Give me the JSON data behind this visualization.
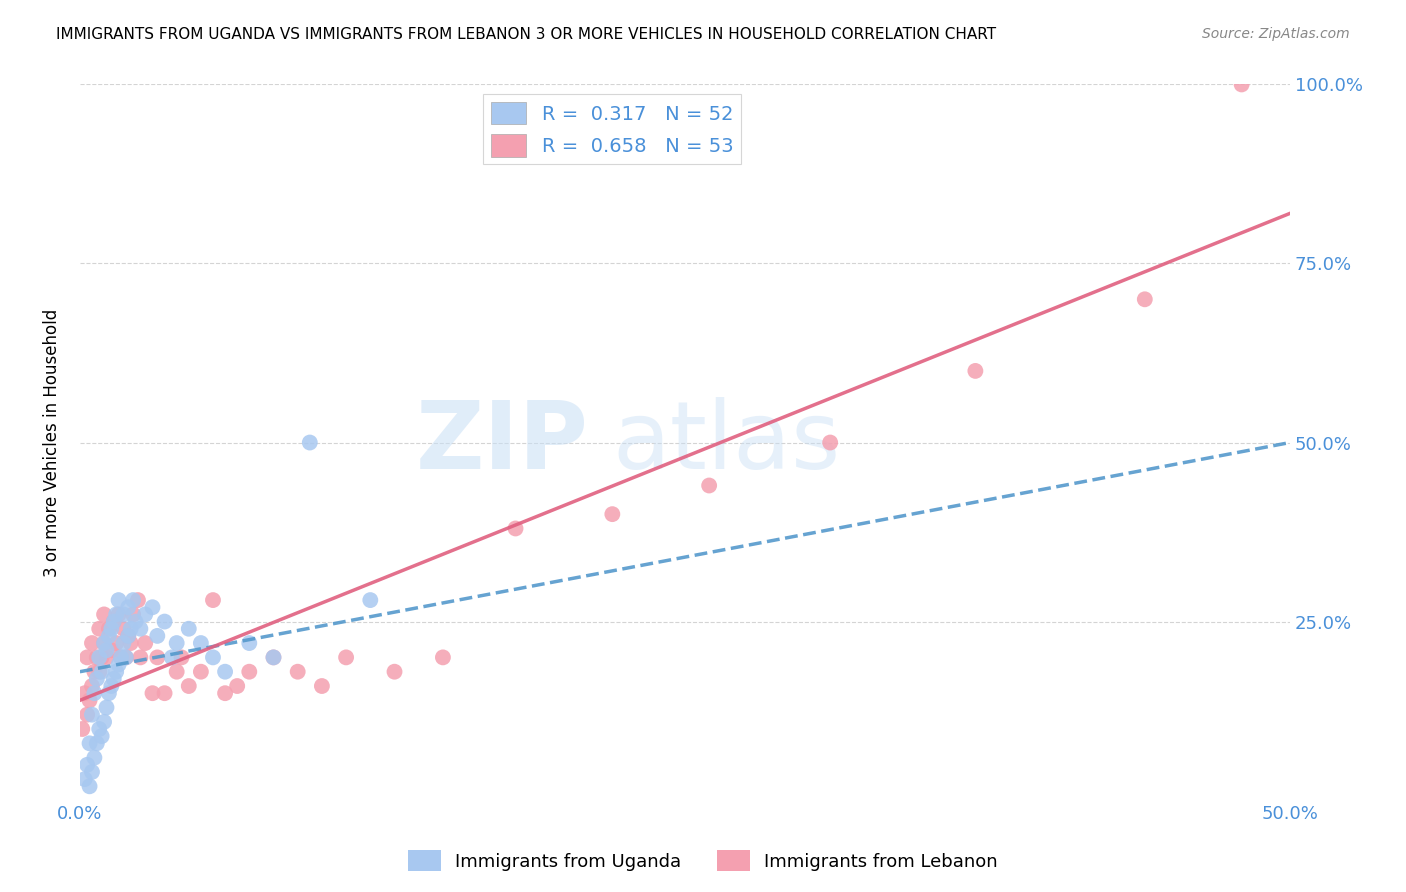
{
  "title": "IMMIGRANTS FROM UGANDA VS IMMIGRANTS FROM LEBANON 3 OR MORE VEHICLES IN HOUSEHOLD CORRELATION CHART",
  "source": "Source: ZipAtlas.com",
  "ylabel": "3 or more Vehicles in Household",
  "xlim": [
    0.0,
    0.5
  ],
  "ylim": [
    0.0,
    1.0
  ],
  "x_tick_labels": [
    "0.0%",
    "",
    "",
    "",
    "",
    "50.0%"
  ],
  "x_tick_values": [
    0.0,
    0.1,
    0.2,
    0.3,
    0.4,
    0.5
  ],
  "y_tick_labels": [
    "25.0%",
    "50.0%",
    "75.0%",
    "100.0%"
  ],
  "y_tick_values": [
    0.25,
    0.5,
    0.75,
    1.0
  ],
  "uganda_color": "#a8c8f0",
  "lebanon_color": "#f4a0b0",
  "uganda_line_color": "#5599cc",
  "lebanon_line_color": "#e06080",
  "uganda_R": 0.317,
  "uganda_N": 52,
  "lebanon_R": 0.658,
  "lebanon_N": 53,
  "watermark_zip": "ZIP",
  "watermark_atlas": "atlas",
  "background_color": "#ffffff",
  "grid_color": "#d0d0d0",
  "axis_label_color": "#4a90d9",
  "uganda_scatter_x": [
    0.002,
    0.003,
    0.004,
    0.004,
    0.005,
    0.005,
    0.006,
    0.006,
    0.007,
    0.007,
    0.008,
    0.008,
    0.009,
    0.009,
    0.01,
    0.01,
    0.011,
    0.011,
    0.012,
    0.012,
    0.013,
    0.013,
    0.014,
    0.014,
    0.015,
    0.015,
    0.016,
    0.016,
    0.017,
    0.018,
    0.018,
    0.019,
    0.02,
    0.02,
    0.021,
    0.022,
    0.023,
    0.025,
    0.027,
    0.03,
    0.032,
    0.035,
    0.038,
    0.04,
    0.045,
    0.05,
    0.055,
    0.06,
    0.07,
    0.08,
    0.095,
    0.12
  ],
  "uganda_scatter_y": [
    0.03,
    0.05,
    0.02,
    0.08,
    0.04,
    0.12,
    0.06,
    0.15,
    0.08,
    0.17,
    0.1,
    0.2,
    0.09,
    0.18,
    0.11,
    0.22,
    0.13,
    0.21,
    0.15,
    0.23,
    0.16,
    0.24,
    0.17,
    0.25,
    0.18,
    0.26,
    0.19,
    0.28,
    0.2,
    0.22,
    0.26,
    0.2,
    0.23,
    0.27,
    0.24,
    0.28,
    0.25,
    0.24,
    0.26,
    0.27,
    0.23,
    0.25,
    0.2,
    0.22,
    0.24,
    0.22,
    0.2,
    0.18,
    0.22,
    0.2,
    0.5,
    0.28
  ],
  "lebanon_scatter_x": [
    0.001,
    0.002,
    0.003,
    0.003,
    0.004,
    0.005,
    0.005,
    0.006,
    0.007,
    0.008,
    0.008,
    0.009,
    0.01,
    0.01,
    0.011,
    0.012,
    0.013,
    0.014,
    0.015,
    0.016,
    0.017,
    0.018,
    0.019,
    0.02,
    0.021,
    0.022,
    0.024,
    0.025,
    0.027,
    0.03,
    0.032,
    0.035,
    0.04,
    0.042,
    0.045,
    0.05,
    0.055,
    0.06,
    0.065,
    0.07,
    0.08,
    0.09,
    0.1,
    0.11,
    0.13,
    0.15,
    0.18,
    0.22,
    0.26,
    0.31,
    0.37,
    0.44,
    0.48
  ],
  "lebanon_scatter_y": [
    0.1,
    0.15,
    0.12,
    0.2,
    0.14,
    0.16,
    0.22,
    0.18,
    0.2,
    0.18,
    0.24,
    0.2,
    0.22,
    0.26,
    0.2,
    0.24,
    0.21,
    0.25,
    0.22,
    0.26,
    0.2,
    0.24,
    0.2,
    0.23,
    0.22,
    0.26,
    0.28,
    0.2,
    0.22,
    0.15,
    0.2,
    0.15,
    0.18,
    0.2,
    0.16,
    0.18,
    0.28,
    0.15,
    0.16,
    0.18,
    0.2,
    0.18,
    0.16,
    0.2,
    0.18,
    0.2,
    0.38,
    0.4,
    0.44,
    0.5,
    0.6,
    0.7,
    1.0
  ],
  "uganda_line_x": [
    0.0,
    0.5
  ],
  "uganda_line_y": [
    0.18,
    0.5
  ],
  "lebanon_line_x": [
    0.0,
    0.5
  ],
  "lebanon_line_y": [
    0.14,
    0.82
  ]
}
